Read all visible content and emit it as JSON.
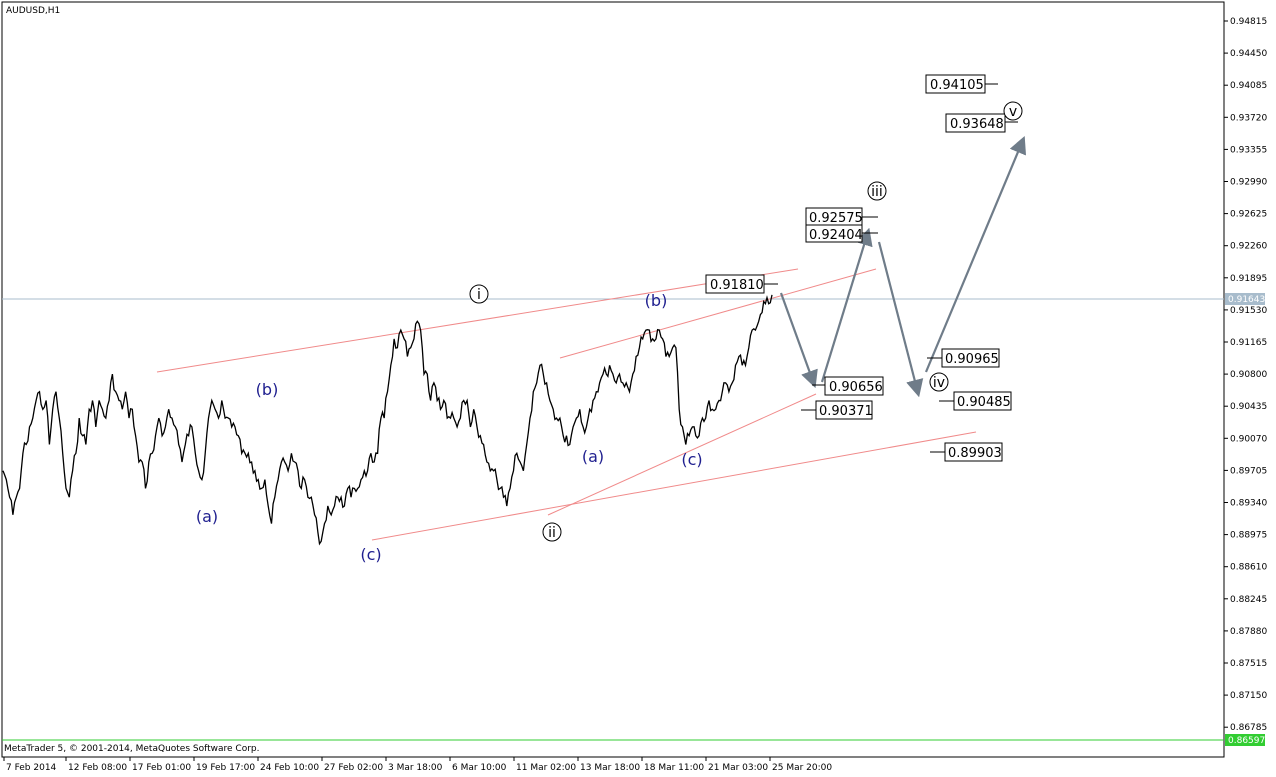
{
  "chart_data": {
    "type": "line",
    "title": "AUDUSD,H1",
    "footer": "MetaTrader 5, © 2001-2014, MetaQuotes Software Corp.",
    "y_ticks": [
      "0.94815",
      "0.94450",
      "0.94085",
      "0.93720",
      "0.93355",
      "0.92990",
      "0.92625",
      "0.92260",
      "0.91895",
      "0.91530",
      "0.91165",
      "0.90800",
      "0.90435",
      "0.90070",
      "0.89705",
      "0.89340",
      "0.88975",
      "0.88610",
      "0.88245",
      "0.87880",
      "0.87515",
      "0.87150",
      "0.86785"
    ],
    "ylim": [
      0.86597,
      0.95
    ],
    "x_ticks": [
      "7 Feb 2014",
      "12 Feb 08:00",
      "17 Feb 01:00",
      "19 Feb 17:00",
      "24 Feb 10:00",
      "27 Feb 02:00",
      "3 Mar 18:00",
      "6 Mar 10:00",
      "11 Mar 02:00",
      "13 Mar 18:00",
      "18 Mar 11:00",
      "21 Mar 03:00",
      "25 Mar 20:00"
    ],
    "current_price": "0.91643",
    "bottom_price": "0.86597",
    "price_series": [
      0.897,
      0.896,
      0.894,
      0.892,
      0.894,
      0.895,
      0.899,
      0.9,
      0.902,
      0.903,
      0.905,
      0.906,
      0.904,
      0.905,
      0.9,
      0.904,
      0.906,
      0.903,
      0.899,
      0.895,
      0.894,
      0.897,
      0.899,
      0.903,
      0.901,
      0.9,
      0.904,
      0.905,
      0.902,
      0.905,
      0.904,
      0.903,
      0.905,
      0.908,
      0.906,
      0.905,
      0.904,
      0.906,
      0.903,
      0.904,
      0.901,
      0.898,
      0.898,
      0.895,
      0.898,
      0.899,
      0.901,
      0.903,
      0.901,
      0.902,
      0.904,
      0.903,
      0.902,
      0.9,
      0.898,
      0.9,
      0.901,
      0.902,
      0.899,
      0.897,
      0.896,
      0.899,
      0.903,
      0.905,
      0.904,
      0.903,
      0.905,
      0.903,
      0.903,
      0.902,
      0.902,
      0.901,
      0.899,
      0.899,
      0.899,
      0.898,
      0.897,
      0.896,
      0.895,
      0.896,
      0.893,
      0.891,
      0.894,
      0.896,
      0.898,
      0.898,
      0.897,
      0.899,
      0.898,
      0.897,
      0.895,
      0.896,
      0.894,
      0.894,
      0.892,
      0.89,
      0.889,
      0.891,
      0.893,
      0.892,
      0.893,
      0.894,
      0.894,
      0.893,
      0.895,
      0.894,
      0.895,
      0.895,
      0.896,
      0.897,
      0.897,
      0.899,
      0.898,
      0.899,
      0.903,
      0.903,
      0.906,
      0.909,
      0.912,
      0.911,
      0.913,
      0.912,
      0.91,
      0.911,
      0.912,
      0.914,
      0.913,
      0.908,
      0.908,
      0.905,
      0.907,
      0.905,
      0.904,
      0.905,
      0.903,
      0.903,
      0.903,
      0.902,
      0.903,
      0.905,
      0.905,
      0.902,
      0.904,
      0.902,
      0.901,
      0.9,
      0.898,
      0.897,
      0.897,
      0.896,
      0.895,
      0.894,
      0.893,
      0.895,
      0.897,
      0.899,
      0.898,
      0.897,
      0.9,
      0.903,
      0.906,
      0.907,
      0.909,
      0.908,
      0.907,
      0.905,
      0.904,
      0.903,
      0.903,
      0.901,
      0.901,
      0.9,
      0.902,
      0.903,
      0.904,
      0.902,
      0.902,
      0.904,
      0.905,
      0.906,
      0.907,
      0.908,
      0.908,
      0.909,
      0.908,
      0.907,
      0.908,
      0.907,
      0.907,
      0.906,
      0.908,
      0.91,
      0.911,
      0.912,
      0.913,
      0.913,
      0.912,
      0.912,
      0.913,
      0.912,
      0.91,
      0.91,
      0.911,
      0.911,
      0.904,
      0.902,
      0.9,
      0.901,
      0.902,
      0.901,
      0.901,
      0.903,
      0.903,
      0.905,
      0.904,
      0.904,
      0.905,
      0.906,
      0.907,
      0.906,
      0.907,
      0.909,
      0.91,
      0.909,
      0.909,
      0.911,
      0.913,
      0.913,
      0.914,
      0.915,
      0.916,
      0.916,
      0.917
    ]
  },
  "annotations": {
    "waves": [
      {
        "id": "wave-i",
        "text": "i",
        "style": "circle"
      },
      {
        "id": "wave-ii",
        "text": "ii",
        "style": "circle"
      },
      {
        "id": "wave-iii",
        "text": "iii",
        "style": "circle"
      },
      {
        "id": "wave-iv",
        "text": "iv",
        "style": "circle"
      },
      {
        "id": "wave-v",
        "text": "v",
        "style": "circle"
      },
      {
        "id": "wave-a1",
        "text": "(a)",
        "style": "blue"
      },
      {
        "id": "wave-b1",
        "text": "(b)",
        "style": "blue"
      },
      {
        "id": "wave-c1",
        "text": "(c)",
        "style": "blue"
      },
      {
        "id": "wave-a2",
        "text": "(a)",
        "style": "blue"
      },
      {
        "id": "wave-b2",
        "text": "(b)",
        "style": "blue"
      },
      {
        "id": "wave-c2",
        "text": "(c)",
        "style": "blue"
      }
    ],
    "price_boxes": [
      "0.94105",
      "0.93648",
      "0.92575",
      "0.92404",
      "0.91810",
      "0.90656",
      "0.90371",
      "0.90965",
      "0.90485",
      "0.89903"
    ]
  }
}
